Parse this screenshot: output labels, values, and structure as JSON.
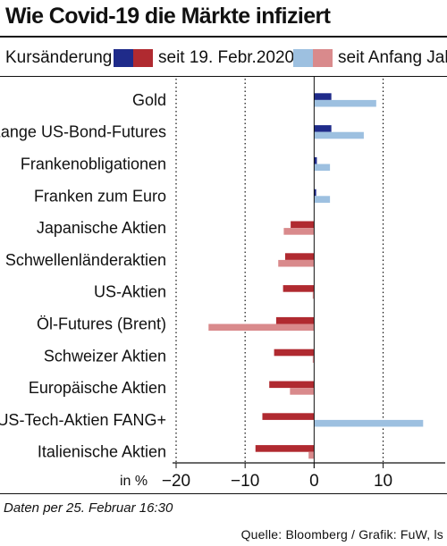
{
  "title": "Wie Covid-19 die Märkte infiziert",
  "legend": {
    "title": "Kursänderung",
    "series_1_label": "seit 19. Febr.2020",
    "series_2_label": "seit Anfang Jahr"
  },
  "colors": {
    "series_1_positive": "#1f2b8a",
    "series_1_negative": "#b02a30",
    "series_2_positive": "#9dc0e0",
    "series_2_negative": "#d98a8c"
  },
  "note": "Daten per 25. Februar 16:30",
  "source": "Quelle: Bloomberg / Grafik: FuW, ls",
  "chart_data": {
    "type": "bar",
    "orientation": "horizontal",
    "categories": [
      "Gold",
      "Lange US-Bond-Futures",
      "Frankenobligationen",
      "Franken zum Euro",
      "Japanische Aktien",
      "Schwellenländeraktien",
      "US-Aktien",
      "Öl-Futures (Brent)",
      "Schweizer Aktien",
      "Europäische Aktien",
      "US-Tech-Aktien FANG+",
      "Italienische Aktien"
    ],
    "series": [
      {
        "name": "seit 19. Febr.2020",
        "values": [
          2.5,
          2.5,
          0.4,
          0.3,
          -3.4,
          -4.2,
          -4.5,
          -5.5,
          -5.8,
          -6.5,
          -7.5,
          -8.5
        ]
      },
      {
        "name": "seit Anfang Jahr",
        "values": [
          9.0,
          7.2,
          2.3,
          2.3,
          -4.4,
          -5.2,
          -0.2,
          -15.3,
          -0.2,
          -3.5,
          15.8,
          -0.8
        ]
      }
    ],
    "xlabel": "in %",
    "xlim": [
      -20,
      19
    ],
    "xticks": [
      -20,
      -10,
      0,
      10
    ],
    "xtick_labels": [
      "−20",
      "−10",
      "0",
      "10"
    ],
    "grid": "dotted vertical at ticks"
  }
}
